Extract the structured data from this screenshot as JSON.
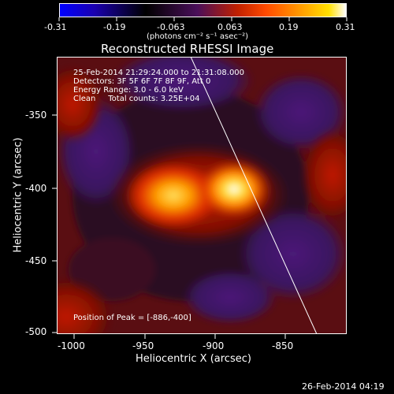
{
  "colorbar": {
    "tick_labels": [
      "-0.31",
      "-0.19",
      "-0.063",
      "0.063",
      "0.19",
      "0.31"
    ],
    "unit": "(photons cm⁻² s⁻¹ asec⁻²)",
    "colors": [
      "#0000ff",
      "#000000",
      "#6a0f6f",
      "#ff2a00",
      "#ffb000",
      "#ffffff"
    ]
  },
  "image": {
    "title": "Reconstructed RHESSI Image",
    "info_lines": [
      "25-Feb-2014 21:29:24.000 to 21:31:08.000",
      "Detectors: 3F 5F 6F 7F 8F 9F, Att 0",
      "Energy Range: 3.0 - 6.0 keV",
      "Clean     Total counts: 3.25E+04"
    ],
    "peak_text": "Position of Peak = [-886,-400]",
    "x_label": "Heliocentric X (arcsec)",
    "y_label": "Heliocentric Y (arcsec)",
    "x_ticks": [
      "-1000",
      "-950",
      "-900",
      "-850"
    ],
    "y_ticks": [
      "-350",
      "-400",
      "-450",
      "-500"
    ],
    "x_range": [
      -1006,
      -820
    ],
    "y_range": [
      -313,
      -503
    ],
    "peak": {
      "x": -886,
      "y": -400
    },
    "sources": [
      {
        "x": -930,
        "y": -405,
        "strength": "bright"
      },
      {
        "x": -886,
        "y": -400,
        "strength": "peak"
      }
    ]
  },
  "footer": {
    "timestamp": "26-Feb-2014 04:19"
  }
}
